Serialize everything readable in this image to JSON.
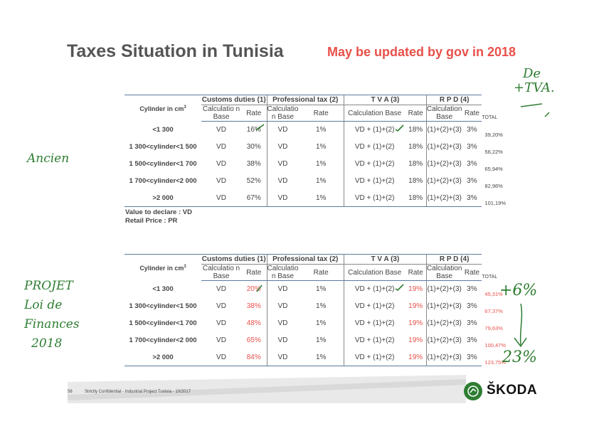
{
  "title": "Taxes Situation in Tunisia",
  "subtitle": "May be updated by gov in 2018",
  "table_headers": {
    "cylinder": "Cylinder in cm",
    "cylinder_sup": "3",
    "customs": "Customs duties (1)",
    "professional": "Professional tax (2)",
    "tva": "T V A  (3)",
    "rpd": "R P D (4)",
    "calc_base_short": "Calculatio n Base",
    "calc_base_full": "Calculation Base",
    "rate": "Rate",
    "total": "TOTAL"
  },
  "table1": {
    "rows": [
      {
        "cyl": "<1 300",
        "customs_base": "VD",
        "customs_rate": "16%",
        "prof_base": "VD",
        "prof_rate": "1%",
        "tva_base": "VD + (1)+(2)",
        "tva_rate": "18%",
        "rpd_base": "(1)+(2)+(3)",
        "rpd_rate": "3%",
        "total": "39,20%"
      },
      {
        "cyl": "1 300<cylinder<1 500",
        "customs_base": "VD",
        "customs_rate": "30%",
        "prof_base": "VD",
        "prof_rate": "1%",
        "tva_base": "VD + (1)+(2)",
        "tva_rate": "18%",
        "rpd_base": "(1)+(2)+(3)",
        "rpd_rate": "3%",
        "total": "56,22%"
      },
      {
        "cyl": "1 500<cylinder<1 700",
        "customs_base": "VD",
        "customs_rate": "38%",
        "prof_base": "VD",
        "prof_rate": "1%",
        "tva_base": "VD + (1)+(2)",
        "tva_rate": "18%",
        "rpd_base": "(1)+(2)+(3)",
        "rpd_rate": "3%",
        "total": "65,94%"
      },
      {
        "cyl": "1 700<cylinder<2 000",
        "customs_base": "VD",
        "customs_rate": "52%",
        "prof_base": "VD",
        "prof_rate": "1%",
        "tva_base": "VD + (1)+(2)",
        "tva_rate": "18%",
        "rpd_base": "(1)+(2)+(3)",
        "rpd_rate": "3%",
        "total": "82,96%"
      },
      {
        "cyl": ">2 000",
        "customs_base": "VD",
        "customs_rate": "67%",
        "prof_base": "VD",
        "prof_rate": "1%",
        "tva_base": "VD + (1)+(2)",
        "tva_rate": "18%",
        "rpd_base": "(1)+(2)+(3)",
        "rpd_rate": "3%",
        "total": "101,19%"
      }
    ]
  },
  "notes": {
    "line1": "Value to declare : VD",
    "line2": "Retail Price : PR"
  },
  "table2": {
    "rows": [
      {
        "cyl": "<1 300",
        "customs_base": "VD",
        "customs_rate": "20%",
        "prof_base": "VD",
        "prof_rate": "1%",
        "tva_base": "VD + (1)+(2)",
        "tva_rate": "19%",
        "rpd_base": "(1)+(2)+(3)",
        "rpd_rate": "3%",
        "total": "45,31%"
      },
      {
        "cyl": "1 300<cylinder<1 500",
        "customs_base": "VD",
        "customs_rate": "38%",
        "prof_base": "VD",
        "prof_rate": "1%",
        "tva_base": "VD + (1)+(2)",
        "tva_rate": "19%",
        "rpd_base": "(1)+(2)+(3)",
        "rpd_rate": "3%",
        "total": "67,37%"
      },
      {
        "cyl": "1 500<cylinder<1 700",
        "customs_base": "VD",
        "customs_rate": "48%",
        "prof_base": "VD",
        "prof_rate": "1%",
        "tva_base": "VD + (1)+(2)",
        "tva_rate": "19%",
        "rpd_base": "(1)+(2)+(3)",
        "rpd_rate": "3%",
        "total": "79,63%"
      },
      {
        "cyl": "1 700<cylinder<2 000",
        "customs_base": "VD",
        "customs_rate": "65%",
        "prof_base": "VD",
        "prof_rate": "1%",
        "tva_base": "VD + (1)+(2)",
        "tva_rate": "19%",
        "rpd_base": "(1)+(2)+(3)",
        "rpd_rate": "3%",
        "total": "100,47%"
      },
      {
        "cyl": ">2 000",
        "customs_base": "VD",
        "customs_rate": "84%",
        "prof_base": "VD",
        "prof_rate": "1%",
        "tva_base": "VD + (1)+(2)",
        "tva_rate": "19%",
        "rpd_base": "(1)+(2)+(3)",
        "rpd_rate": "3%",
        "total": "123,75%"
      }
    ]
  },
  "handwriting": {
    "ancien": "Ancien",
    "de_tva_1": "De",
    "de_tva_2": "+TVA.",
    "projet_1": "PROJET",
    "projet_2": "Loi de",
    "projet_3": "Finances",
    "projet_4": "2018",
    "plus_6": "+6%",
    "pct_23": "23%"
  },
  "footer": {
    "page": "56",
    "text": "Strictly Confidential - Industrial Project Tunisia - 10/2017",
    "brand": "ŠKODA"
  },
  "colors": {
    "accent_red": "#e8504a",
    "rule_blue": "#5b7aa0",
    "handwriting_green": "#2e7d32"
  }
}
